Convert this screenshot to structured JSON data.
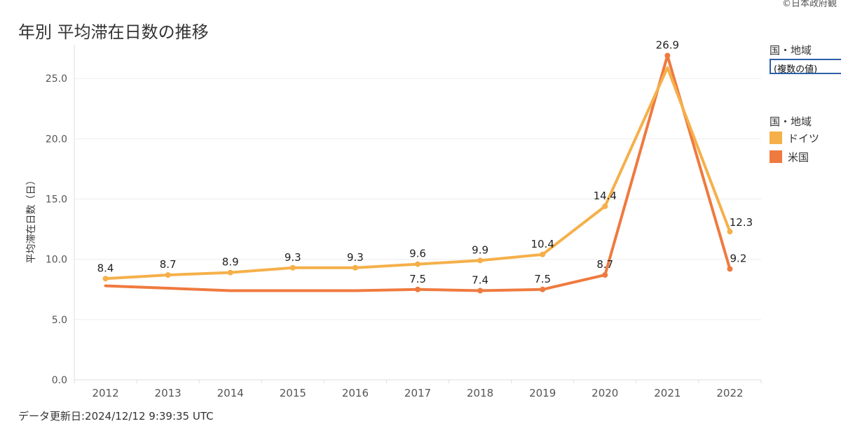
{
  "page": {
    "copyright": "©日本政府観",
    "title": "年別 平均滞在日数の推移",
    "updated": "データ更新日:2024/12/12 9:39:35 UTC"
  },
  "filter": {
    "label": "国・地域",
    "value": "(複数の値)"
  },
  "legend": {
    "title": "国・地域",
    "items": [
      {
        "label": "ドイツ",
        "color": "#f5b04a"
      },
      {
        "label": "米国",
        "color": "#ef7a3f"
      }
    ]
  },
  "chart_data": {
    "type": "line",
    "title": "年別 平均滞在日数の推移",
    "ylabel": "平均滞在日数（日）",
    "xlabel": "",
    "x": [
      "2012",
      "2013",
      "2014",
      "2015",
      "2016",
      "2017",
      "2018",
      "2019",
      "2020",
      "2021",
      "2022"
    ],
    "ylim": [
      0,
      27.8
    ],
    "yticks": [
      "0.0",
      "5.0",
      "10.0",
      "15.0",
      "20.0",
      "25.0"
    ],
    "ytick_values": [
      0,
      5,
      10,
      15,
      20,
      25
    ],
    "grid": true,
    "legend_position": "right",
    "series": [
      {
        "name": "ドイツ",
        "color": "#f5b04a",
        "values": [
          8.4,
          8.7,
          8.9,
          9.3,
          9.3,
          9.6,
          9.9,
          10.4,
          14.4,
          25.9,
          12.3
        ],
        "labels": [
          "8.4",
          "8.7",
          "8.9",
          "9.3",
          "9.3",
          "9.6",
          "9.9",
          "10.4",
          "14.4",
          "",
          "12.3"
        ]
      },
      {
        "name": "米国",
        "color": "#ef7a3f",
        "values": [
          7.8,
          7.6,
          7.4,
          7.4,
          7.4,
          7.5,
          7.4,
          7.5,
          8.7,
          26.9,
          9.2
        ],
        "labels": [
          "",
          "",
          "",
          "",
          "",
          "7.5",
          "7.4",
          "7.5",
          "8.7",
          "26.9",
          "9.2"
        ]
      }
    ]
  }
}
